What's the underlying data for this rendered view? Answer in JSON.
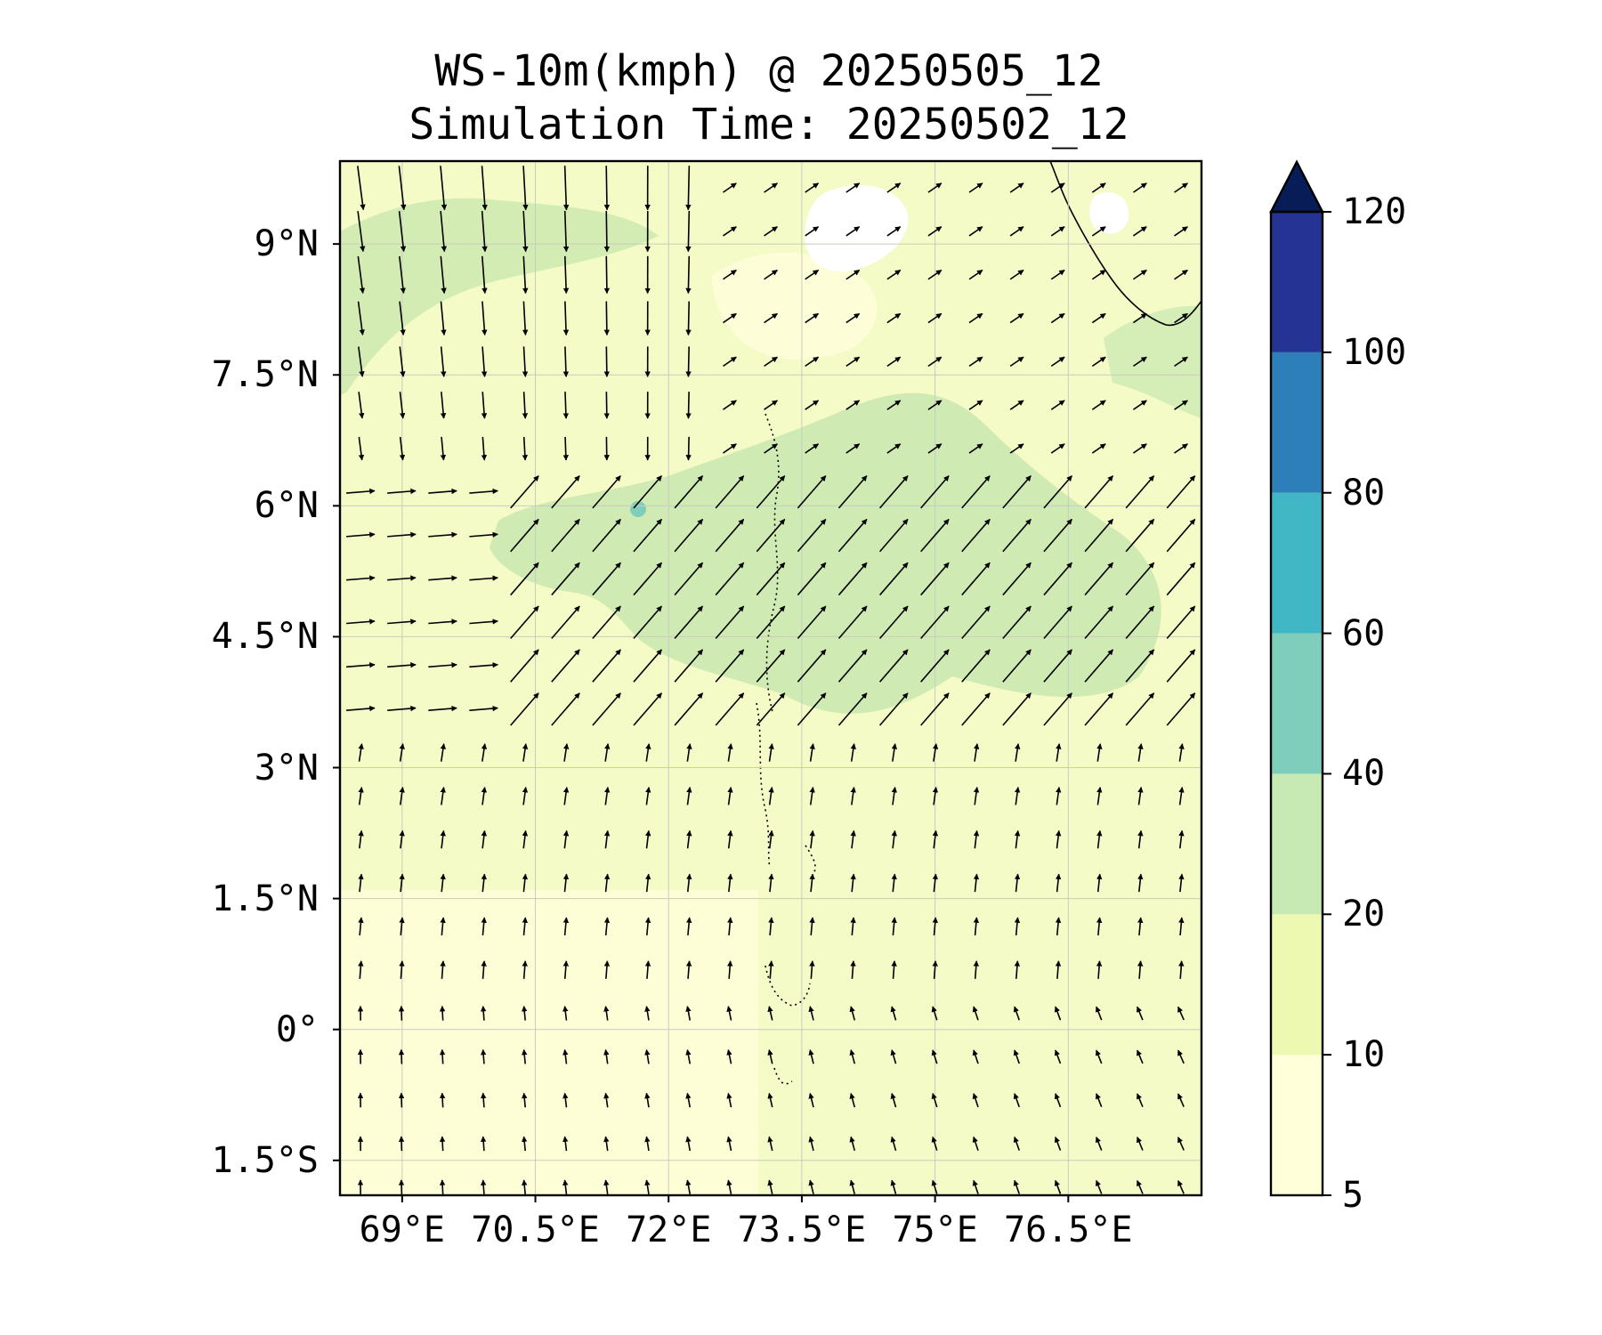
{
  "title": {
    "line1": "WS-10m(kmph) @ 20250505_12",
    "line2": "Simulation Time: 20250502_12"
  },
  "map": {
    "lon_range": [
      68.3,
      78.0
    ],
    "lat_range": [
      -1.9,
      9.95
    ],
    "lat_ticks": [
      {
        "value": 9.0,
        "label": "9°N"
      },
      {
        "value": 7.5,
        "label": "7.5°N"
      },
      {
        "value": 6.0,
        "label": "6°N"
      },
      {
        "value": 4.5,
        "label": "4.5°N"
      },
      {
        "value": 3.0,
        "label": "3°N"
      },
      {
        "value": 1.5,
        "label": "1.5°N"
      },
      {
        "value": 0.0,
        "label": "0°"
      },
      {
        "value": -1.5,
        "label": "1.5°S"
      }
    ],
    "lon_ticks": [
      {
        "value": 69.0,
        "label": "69°E"
      },
      {
        "value": 70.5,
        "label": "70.5°E"
      },
      {
        "value": 72.0,
        "label": "72°E"
      },
      {
        "value": 73.5,
        "label": "73.5°E"
      },
      {
        "value": 75.0,
        "label": "75°E"
      },
      {
        "value": 76.5,
        "label": "76.5°E"
      }
    ],
    "gridlines": true,
    "background_color": "#f4fbc6"
  },
  "colorbar": {
    "levels": [
      5,
      10,
      20,
      40,
      60,
      80,
      100,
      120
    ],
    "labels": [
      "5",
      "10",
      "20",
      "40",
      "60",
      "80",
      "100",
      "120"
    ],
    "colors": [
      "#ffffd9",
      "#edf8b1",
      "#c7e9b4",
      "#7fcdbb",
      "#41b6c4",
      "#2c7fb8",
      "#253494",
      "#081d58"
    ],
    "extend": "max"
  }
}
